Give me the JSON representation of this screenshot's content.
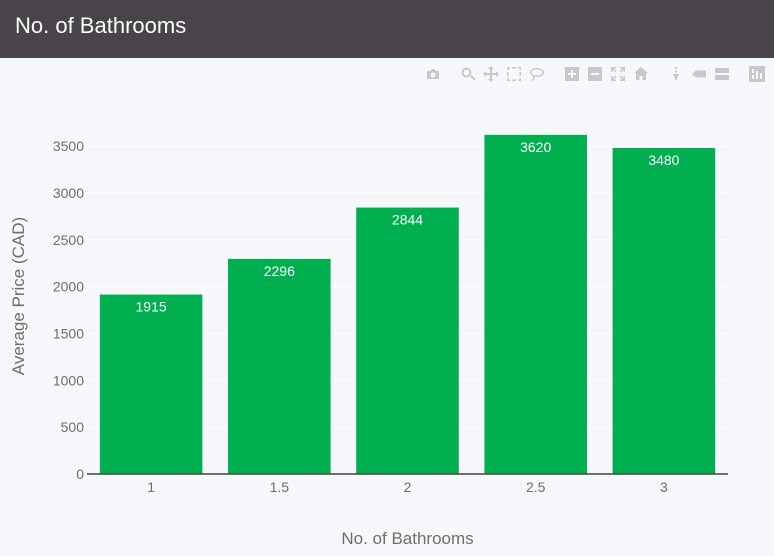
{
  "header": {
    "title": "No. of Bathrooms"
  },
  "modebar": {
    "icons": [
      "camera-icon",
      "zoom-icon",
      "pan-icon",
      "box-select-icon",
      "lasso-select-icon",
      "zoom-in-icon",
      "zoom-out-icon",
      "autoscale-icon",
      "reset-axes-icon",
      "spike-lines-icon",
      "hover-closest-icon",
      "hover-compare-icon",
      "plotly-logo-icon"
    ]
  },
  "colors": {
    "bar": "#00b050",
    "header_bg": "#48444a",
    "plot_bg": "#f6f7fa"
  },
  "chart_data": {
    "type": "bar",
    "categories": [
      "1",
      "1.5",
      "2",
      "2.5",
      "3"
    ],
    "values": [
      1915,
      2296,
      2844,
      3620,
      3480
    ],
    "data_labels": [
      "1915",
      "2296",
      "2844",
      "3620",
      "3480"
    ],
    "title": "",
    "xlabel": "No. of Bathrooms",
    "ylabel": "Average Price (CAD)",
    "ylim": [
      0,
      3800
    ],
    "yticks": [
      0,
      500,
      1000,
      1500,
      2000,
      2500,
      3000,
      3500
    ],
    "grid": true,
    "legend": "none"
  }
}
